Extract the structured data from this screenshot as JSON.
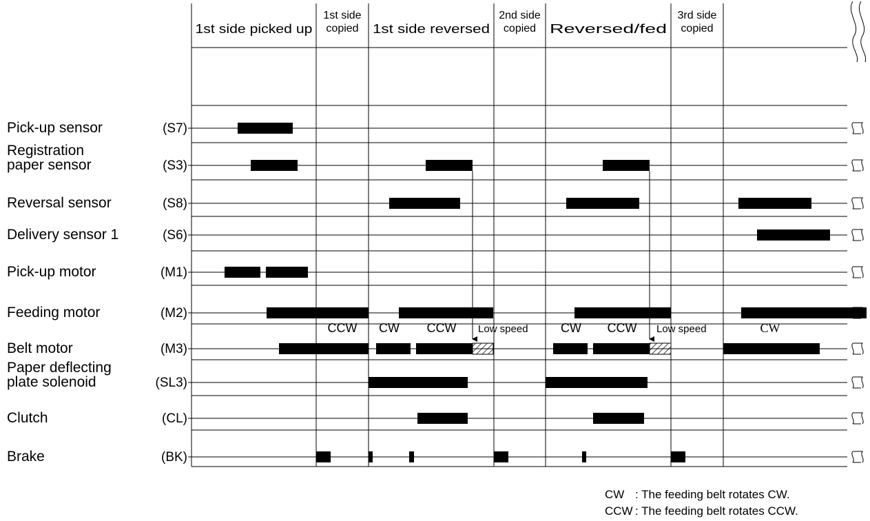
{
  "phases": [
    {
      "label": "1st side picked up",
      "lines": [
        "1st side picked up"
      ]
    },
    {
      "label": "1st side copied",
      "lines": [
        "1st side",
        "copied"
      ]
    },
    {
      "label": "1st side reversed",
      "lines": [
        "1st side reversed"
      ]
    },
    {
      "label": "2nd side copied",
      "lines": [
        "2nd side",
        "copied"
      ]
    },
    {
      "label": "Reversed/fed",
      "lines": [
        "Reversed/fed"
      ]
    },
    {
      "label": "3rd side copied",
      "lines": [
        "3rd side",
        "copied"
      ]
    },
    {
      "label": "",
      "lines": []
    }
  ],
  "signals": [
    {
      "name": "Pick-up sensor",
      "name_lines": [
        "Pick-up sensor"
      ],
      "code": "(S7)",
      "on_intervals": [
        [
          345,
          425
        ]
      ]
    },
    {
      "name": "Registration paper sensor",
      "name_lines": [
        "Registration",
        "paper sensor"
      ],
      "code": "(S3)",
      "on_intervals": [
        [
          364,
          432
        ],
        [
          618,
          686
        ],
        [
          875,
          943
        ]
      ]
    },
    {
      "name": "Reversal sensor",
      "name_lines": [
        "Reversal sensor"
      ],
      "code": "(S8)",
      "on_intervals": [
        [
          565,
          668
        ],
        [
          822,
          928
        ],
        [
          1072,
          1178
        ]
      ]
    },
    {
      "name": "Delivery sensor 1",
      "name_lines": [
        "Delivery sensor 1"
      ],
      "code": "(S6)",
      "on_intervals": [
        [
          1099,
          1205
        ]
      ]
    },
    {
      "name": "Pick-up motor",
      "name_lines": [
        "Pick-up motor"
      ],
      "code": "(M1)",
      "on_intervals": [
        [
          326,
          378
        ],
        [
          386,
          447
        ]
      ]
    },
    {
      "name": "Feeding motor",
      "name_lines": [
        "Feeding motor"
      ],
      "code": "(M2)",
      "on_intervals": [
        [
          387,
          535
        ],
        [
          579,
          716
        ],
        [
          834,
          974
        ],
        [
          1076,
          1258
        ]
      ]
    },
    {
      "name": "Belt motor",
      "name_lines": [
        "Belt motor"
      ],
      "code": "(M3)",
      "on_intervals": [
        [
          405,
          535
        ],
        [
          546,
          596
        ],
        [
          604,
          686
        ],
        [
          803,
          853
        ],
        [
          861,
          943
        ],
        [
          1050,
          1190
        ]
      ],
      "low_speed_intervals": [
        [
          686,
          716
        ],
        [
          943,
          974
        ]
      ]
    },
    {
      "name": "Paper deflecting plate solenoid",
      "name_lines": [
        "Paper deflecting",
        "plate solenoid"
      ],
      "code": "(SL3)",
      "on_intervals": [
        [
          535,
          679
        ],
        [
          792,
          940
        ]
      ]
    },
    {
      "name": "Clutch",
      "name_lines": [
        "Clutch"
      ],
      "code": "(CL)",
      "on_intervals": [
        [
          606,
          679
        ],
        [
          861,
          935
        ]
      ]
    },
    {
      "name": "Brake",
      "name_lines": [
        "Brake"
      ],
      "code": "(BK)",
      "on_intervals": [
        [
          459,
          480
        ],
        [
          535,
          541
        ],
        [
          594,
          601
        ],
        [
          717,
          738
        ],
        [
          845,
          851
        ],
        [
          974,
          995
        ]
      ]
    }
  ],
  "belt_annotations": [
    {
      "text": "CCW",
      "serif": false
    },
    {
      "text": "CW",
      "serif": false
    },
    {
      "text": "CCW",
      "serif": false
    },
    {
      "text": "Low speed",
      "serif": false
    },
    {
      "text": "CW",
      "serif": false
    },
    {
      "text": "CCW",
      "serif": false
    },
    {
      "text": "Low speed",
      "serif": false
    },
    {
      "text": "CW",
      "serif": true
    }
  ],
  "legend": {
    "cw_key": "CW",
    "cw_desc": ": The feeding belt rotates CW.",
    "ccw_key": "CCW",
    "ccw_desc": ": The feeding belt rotates CCW."
  }
}
